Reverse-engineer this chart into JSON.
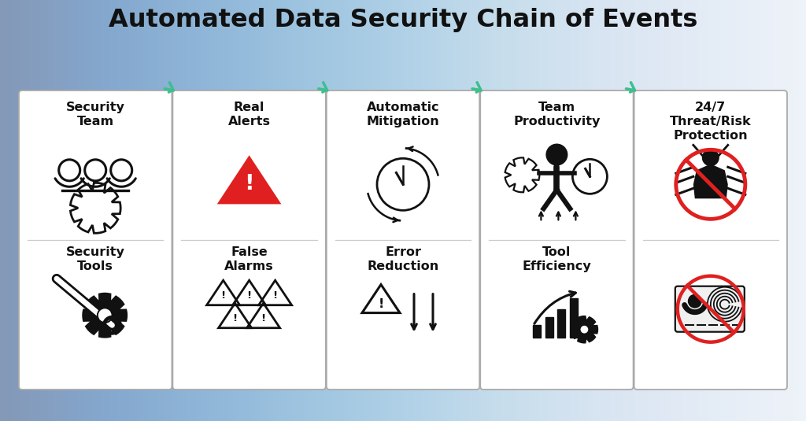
{
  "title": "Automated Data Security Chain of Events",
  "title_fontsize": 23,
  "title_fontweight": "bold",
  "bg_color": "#e8edf5",
  "panel_bg": "#ffffff",
  "panel_edge": "#aaaaaa",
  "arrow_color": "#3dbf8e",
  "text_color": "#111111",
  "red_color": "#e02020",
  "label_fontsize": 11.5,
  "label_fontweight": "bold",
  "panels": [
    {
      "top_label": "Security\nTeam",
      "bottom_label": "Security\nTools",
      "top_icon": "people_gear",
      "bottom_icon": "wrench_gear"
    },
    {
      "top_label": "Real\nAlerts",
      "bottom_label": "False\nAlarms",
      "top_icon": "alert_red",
      "bottom_icon": "alerts_multi"
    },
    {
      "top_label": "Automatic\nMitigation",
      "bottom_label": "Error\nReduction",
      "top_icon": "clock_cycle",
      "bottom_icon": "error_down"
    },
    {
      "top_label": "Team\nProductivity",
      "bottom_label": "Tool\nEfficiency",
      "top_icon": "person_clock",
      "bottom_icon": "chart_gear"
    },
    {
      "top_label": "24/7\nThreat/Risk\nProtection",
      "bottom_label": "",
      "top_icon": "bug_blocked",
      "bottom_icon": "data_blocked"
    }
  ]
}
